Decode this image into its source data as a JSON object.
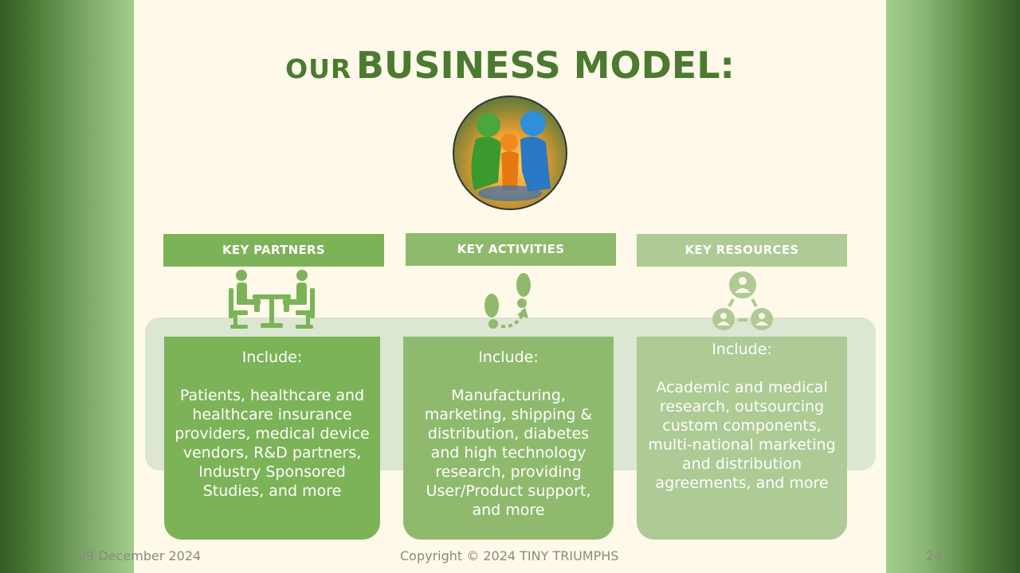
{
  "title": {
    "prefix": "OUR",
    "main": "BUSINESS MODEL:"
  },
  "colors": {
    "title": "#4b7a30",
    "partners": "#7db358",
    "activities": "#8fba6e",
    "resources": "#aeca95",
    "slide_bg": "#fef9e8",
    "band": "#dbe6d3"
  },
  "columns": [
    {
      "header": "KEY PARTNERS",
      "icon": "meeting-table-icon",
      "include": "Include:",
      "body": "Patients, healthcare and healthcare insurance providers, medical device vendors, R&D partners, Industry Sponsored Studies, and more"
    },
    {
      "header": "KEY ACTIVITIES",
      "icon": "footsteps-icon",
      "include": "Include:",
      "body": "Manufacturing, marketing, shipping & distribution, diabetes and high technology research, providing User/Product support, and more"
    },
    {
      "header": "KEY RESOURCES",
      "icon": "network-people-icon",
      "include": "Include:",
      "body": "Academic and medical research, outsourcing custom components, multi-national marketing and distribution agreements, and more"
    }
  ],
  "footer": {
    "date": "09 December 2024",
    "copyright": "Copyright © 2024 TINY TRIUMPHS",
    "page": "24"
  }
}
